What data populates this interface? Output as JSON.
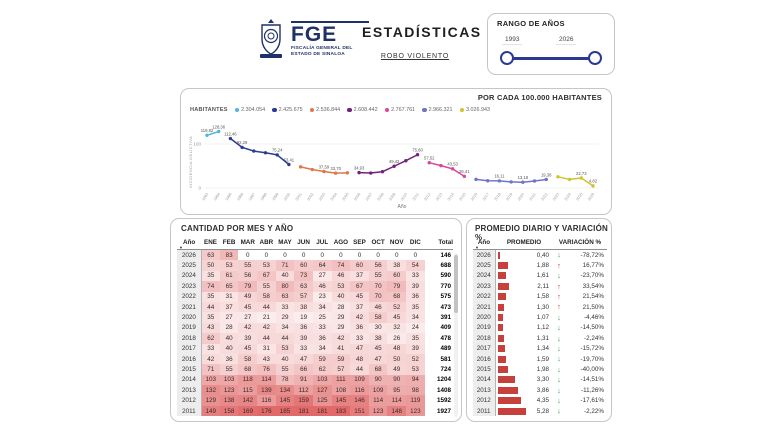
{
  "header": {
    "logo_acronym": "FGE",
    "org_line1": "FISCALÍA GENERAL DEL",
    "org_line2": "ESTADO DE SINALOA",
    "title": "ESTADÍSTICAS",
    "subtitle": "ROBO VIOLENTO"
  },
  "range_panel": {
    "title": "RANGO DE AÑOS",
    "min": "1993",
    "max": "2026"
  },
  "chart_panel": {
    "header": "POR CADA 100.000 HABITANTES",
    "legend_title": "HABITANTES"
  },
  "chart_data": {
    "type": "line",
    "title": "POR CADA 100.000 HABITANTES",
    "xlabel": "Año",
    "ylabel": "INCIDENCIA DELICTIVA",
    "ylim": [
      0,
      140
    ],
    "yticks": [
      0,
      100
    ],
    "x_range": [
      1993,
      2026
    ],
    "x_ticks": [
      1993,
      1994,
      1995,
      1996,
      1997,
      1998,
      1999,
      2000,
      2001,
      2002,
      2003,
      2004,
      2005,
      2006,
      2007,
      2008,
      2009,
      2010,
      2011,
      2012,
      2013,
      2014,
      2015,
      2016,
      2017,
      2018,
      2019,
      2020,
      2021,
      2022,
      2023,
      2024,
      2025,
      2026
    ],
    "legend_position": "top",
    "grid": false,
    "series": [
      {
        "name": "2.304.054",
        "color": "#4FB5E5",
        "points": [
          [
            1993,
            119.82,
            "119,82"
          ],
          [
            1994,
            128.36,
            "128,36"
          ]
        ]
      },
      {
        "name": "2.425.675",
        "color": "#2B3B94",
        "points": [
          [
            1995,
            112.46,
            "112,46"
          ],
          [
            1996,
            92.29,
            "92,29"
          ],
          [
            1997,
            84.0,
            null
          ],
          [
            1998,
            80.0,
            null
          ],
          [
            1999,
            75.24,
            "75,24"
          ],
          [
            2000,
            53.41,
            "53,41"
          ]
        ]
      },
      {
        "name": "2.536.844",
        "color": "#E0764B",
        "points": [
          [
            2001,
            48.0,
            null
          ],
          [
            2002,
            42.0,
            null
          ],
          [
            2003,
            37.59,
            "37,59"
          ],
          [
            2004,
            33.7,
            "33,70"
          ],
          [
            2005,
            34.5,
            null
          ]
        ]
      },
      {
        "name": "2.608.442",
        "color": "#73207E",
        "points": [
          [
            2006,
            34.93,
            "34,93"
          ],
          [
            2007,
            34.0,
            null
          ],
          [
            2008,
            37.0,
            null
          ],
          [
            2009,
            49.42,
            "49,42"
          ],
          [
            2010,
            62.0,
            null
          ],
          [
            2011,
            75.6,
            "75,60"
          ]
        ]
      },
      {
        "name": "2.767.761",
        "color": "#D9479B",
        "points": [
          [
            2012,
            57.52,
            "57,52"
          ],
          [
            2013,
            50.87,
            null
          ],
          [
            2014,
            43.53,
            "43,53"
          ],
          [
            2015,
            26.41,
            "26,41"
          ]
        ]
      },
      {
        "name": "2.966.321",
        "color": "#7173C9",
        "points": [
          [
            2016,
            19.59,
            null
          ],
          [
            2017,
            16.48,
            null
          ],
          [
            2018,
            16.11,
            "16,11"
          ],
          [
            2019,
            13.79,
            null
          ],
          [
            2020,
            13.18,
            "13,18"
          ],
          [
            2021,
            15.95,
            null
          ],
          [
            2022,
            19.38,
            "19,38"
          ]
        ]
      },
      {
        "name": "3.026.943",
        "color": "#D1C22F",
        "points": [
          [
            2023,
            25.44,
            null
          ],
          [
            2024,
            19.49,
            null
          ],
          [
            2025,
            22.73,
            "22,73"
          ],
          [
            2026,
            4.82,
            "4,82"
          ]
        ]
      }
    ]
  },
  "monthly_table": {
    "title": "CANTIDAD POR MES Y AÑO",
    "columns": [
      "Año",
      "ENE",
      "FEB",
      "MAR",
      "ABR",
      "MAY",
      "JUN",
      "JUL",
      "AGO",
      "SEP",
      "OCT",
      "NOV",
      "DIC",
      "Total"
    ],
    "heat_max": 190,
    "rows": [
      {
        "year": "2026",
        "values": [
          63,
          83,
          0,
          0,
          0,
          0,
          0,
          0,
          0,
          0,
          0,
          0
        ],
        "total": 146
      },
      {
        "year": "2025",
        "values": [
          50,
          53,
          55,
          53,
          71,
          60,
          64,
          74,
          60,
          56,
          38,
          54
        ],
        "total": 688
      },
      {
        "year": "2024",
        "values": [
          35,
          61,
          56,
          67,
          40,
          73,
          27,
          46,
          37,
          55,
          60,
          33
        ],
        "total": 590
      },
      {
        "year": "2023",
        "values": [
          74,
          65,
          79,
          55,
          80,
          63,
          46,
          53,
          67,
          70,
          79,
          39
        ],
        "total": 770
      },
      {
        "year": "2022",
        "values": [
          35,
          31,
          49,
          58,
          63,
          57,
          23,
          40,
          45,
          70,
          68,
          36
        ],
        "total": 575
      },
      {
        "year": "2021",
        "values": [
          44,
          37,
          45,
          44,
          33,
          38,
          34,
          28,
          37,
          46,
          52,
          35
        ],
        "total": 473
      },
      {
        "year": "2020",
        "values": [
          35,
          27,
          27,
          21,
          29,
          19,
          25,
          29,
          42,
          58,
          45,
          34
        ],
        "total": 391
      },
      {
        "year": "2019",
        "values": [
          43,
          28,
          42,
          42,
          34,
          36,
          33,
          29,
          36,
          30,
          32,
          24
        ],
        "total": 409
      },
      {
        "year": "2018",
        "values": [
          62,
          40,
          39,
          44,
          44,
          39,
          36,
          42,
          33,
          38,
          26,
          35
        ],
        "total": 478
      },
      {
        "year": "2017",
        "values": [
          33,
          40,
          45,
          31,
          53,
          33,
          34,
          41,
          47,
          45,
          48,
          39
        ],
        "total": 489
      },
      {
        "year": "2016",
        "values": [
          42,
          36,
          58,
          43,
          40,
          47,
          59,
          59,
          48,
          47,
          50,
          52
        ],
        "total": 581
      },
      {
        "year": "2015",
        "values": [
          71,
          55,
          68,
          76,
          55,
          66,
          62,
          57,
          44,
          68,
          49,
          53
        ],
        "total": 724
      },
      {
        "year": "2014",
        "values": [
          103,
          103,
          118,
          114,
          78,
          91,
          103,
          111,
          109,
          90,
          90,
          94
        ],
        "total": 1204
      },
      {
        "year": "2013",
        "values": [
          132,
          123,
          115,
          139,
          134,
          112,
          127,
          108,
          116,
          109,
          95,
          98
        ],
        "total": 1408
      },
      {
        "year": "2012",
        "values": [
          129,
          138,
          142,
          116,
          145,
          159,
          125,
          145,
          146,
          114,
          114,
          119
        ],
        "total": 1592
      },
      {
        "year": "2011",
        "values": [
          149,
          158,
          169,
          176,
          185,
          181,
          181,
          183,
          151,
          123,
          148,
          123
        ],
        "total": 1927
      }
    ]
  },
  "summary_table": {
    "title": "PROMEDIO DIARIO Y VARIACIÓN %",
    "columns": [
      "Año",
      "PROMEDIO",
      "VARIACIÓN %"
    ],
    "bar_color": "#C6403C",
    "up_color": "#C0392B",
    "down_color": "#27A343",
    "avg_max": 5.28,
    "rows": [
      {
        "year": "2026",
        "avg": "0,40",
        "avg_value": 0.4,
        "direction": "down",
        "variation": "-78,72%"
      },
      {
        "year": "2025",
        "avg": "1,88",
        "avg_value": 1.88,
        "direction": "up",
        "variation": "16,77%"
      },
      {
        "year": "2024",
        "avg": "1,61",
        "avg_value": 1.61,
        "direction": "down",
        "variation": "-23,70%"
      },
      {
        "year": "2023",
        "avg": "2,11",
        "avg_value": 2.11,
        "direction": "up",
        "variation": "33,54%"
      },
      {
        "year": "2022",
        "avg": "1,58",
        "avg_value": 1.58,
        "direction": "up",
        "variation": "21,54%"
      },
      {
        "year": "2021",
        "avg": "1,30",
        "avg_value": 1.3,
        "direction": "up",
        "variation": "21,50%"
      },
      {
        "year": "2020",
        "avg": "1,07",
        "avg_value": 1.07,
        "direction": "down",
        "variation": "-4,46%"
      },
      {
        "year": "2019",
        "avg": "1,12",
        "avg_value": 1.12,
        "direction": "down",
        "variation": "-14,50%"
      },
      {
        "year": "2018",
        "avg": "1,31",
        "avg_value": 1.31,
        "direction": "down",
        "variation": "-2,24%"
      },
      {
        "year": "2017",
        "avg": "1,34",
        "avg_value": 1.34,
        "direction": "down",
        "variation": "-15,72%"
      },
      {
        "year": "2016",
        "avg": "1,59",
        "avg_value": 1.59,
        "direction": "down",
        "variation": "-19,70%"
      },
      {
        "year": "2015",
        "avg": "1,98",
        "avg_value": 1.98,
        "direction": "down",
        "variation": "-40,00%"
      },
      {
        "year": "2014",
        "avg": "3,30",
        "avg_value": 3.3,
        "direction": "down",
        "variation": "-14,51%"
      },
      {
        "year": "2013",
        "avg": "3,86",
        "avg_value": 3.86,
        "direction": "down",
        "variation": "-11,26%"
      },
      {
        "year": "2012",
        "avg": "4,35",
        "avg_value": 4.35,
        "direction": "down",
        "variation": "-17,61%"
      },
      {
        "year": "2011",
        "avg": "5,28",
        "avg_value": 5.28,
        "direction": "down",
        "variation": "-2,22%"
      }
    ]
  }
}
